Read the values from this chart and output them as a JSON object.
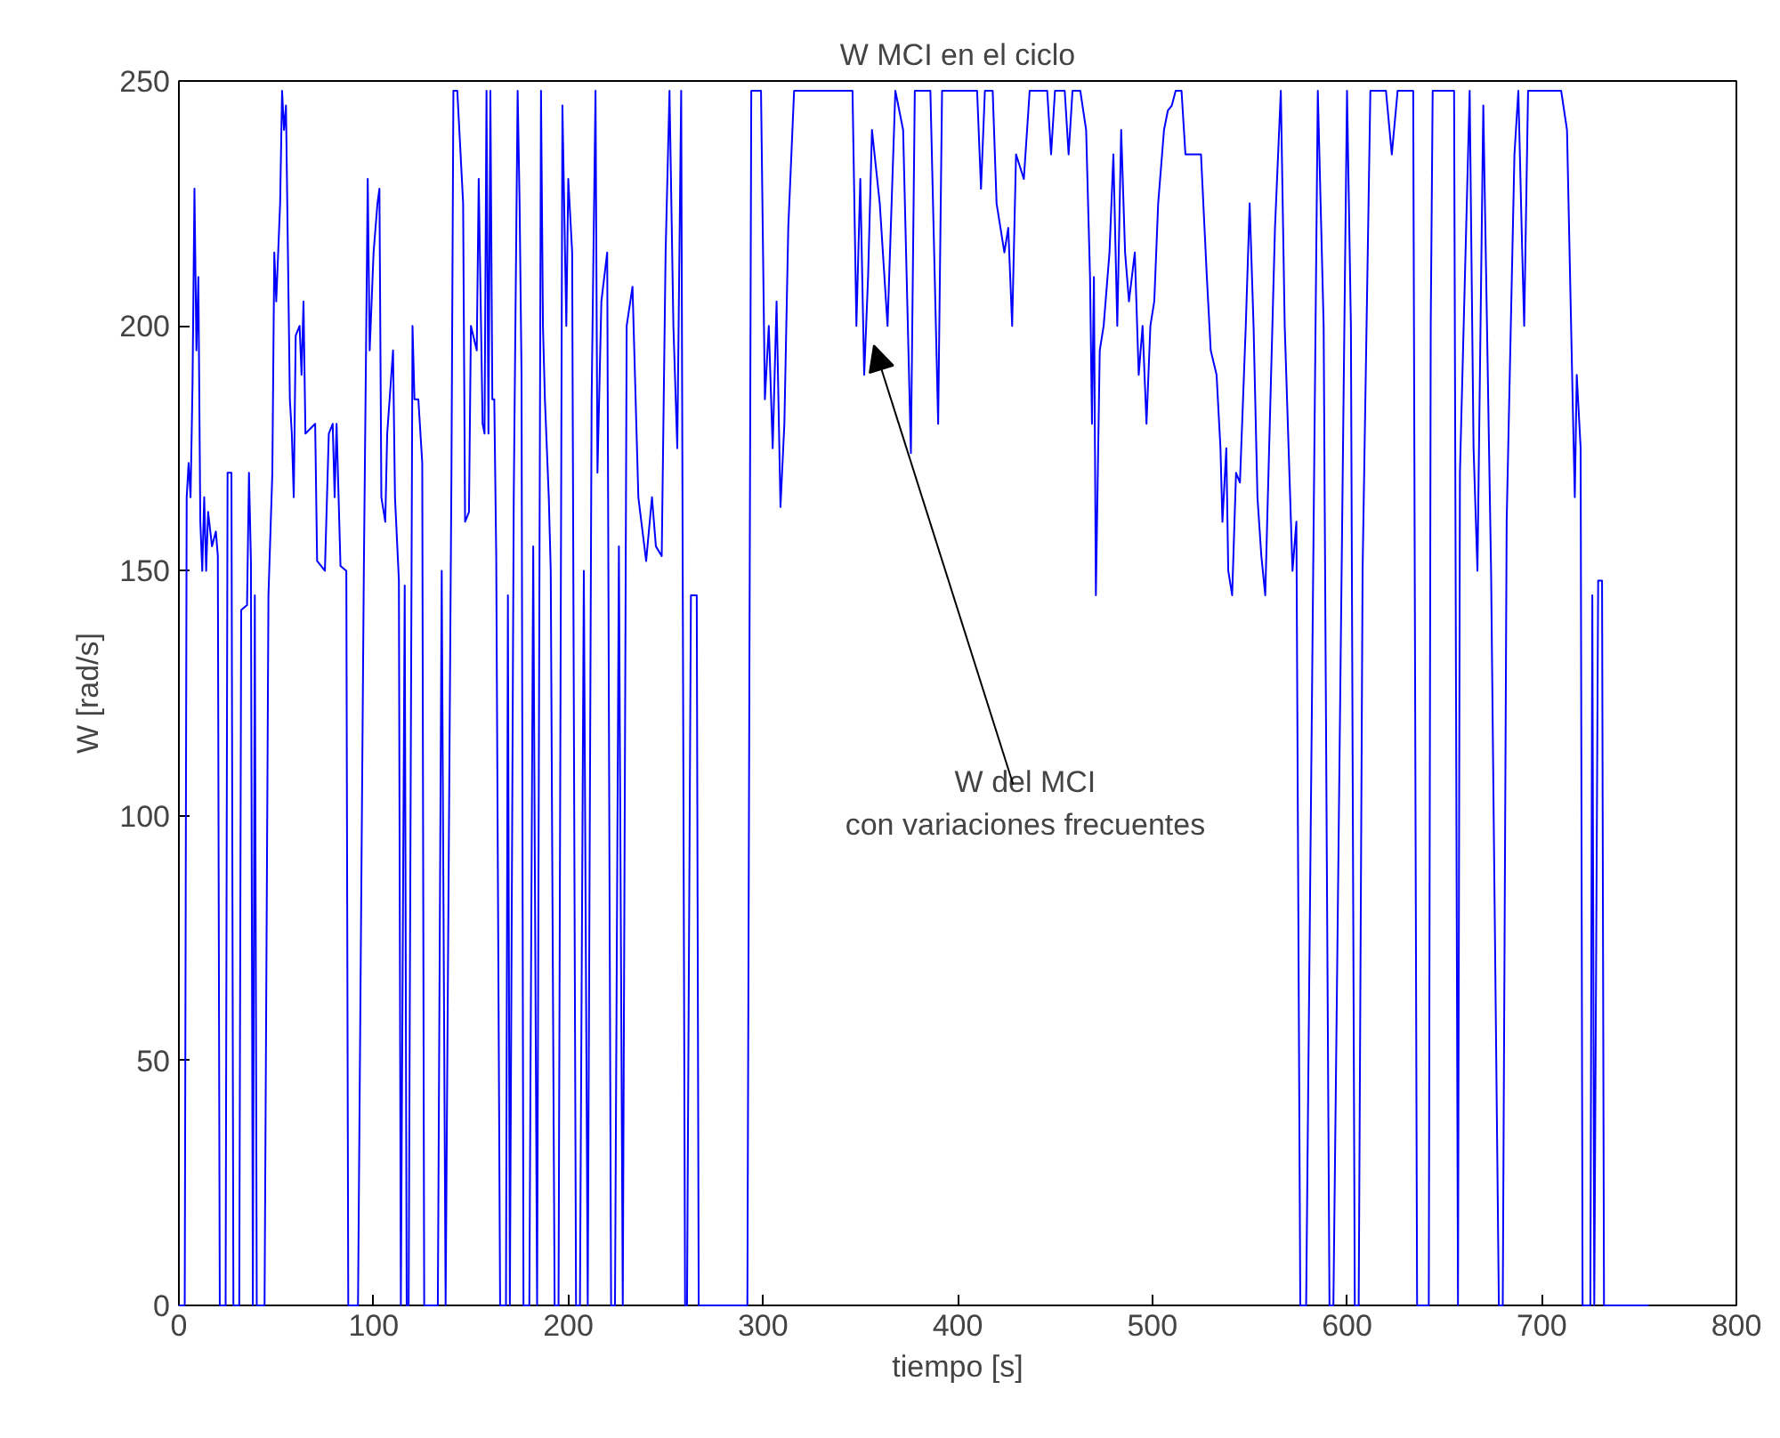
{
  "chart_data": {
    "type": "line",
    "title": "W MCI en el ciclo",
    "xlabel": "tiempo [s]",
    "ylabel": "W [rad/s]",
    "xlim": [
      0,
      800
    ],
    "ylim": [
      0,
      250
    ],
    "xticks": [
      0,
      100,
      200,
      300,
      400,
      500,
      600,
      700,
      800
    ],
    "yticks": [
      0,
      50,
      100,
      150,
      200,
      250
    ],
    "grid": false,
    "marker": "none",
    "line_style": "solid",
    "annotations": [
      {
        "text": "W del MCI\ncon variaciones frecuentes",
        "x": 357,
        "y": 196
      }
    ],
    "series": [
      {
        "color": "#0000ff",
        "x": [
          0,
          3,
          4,
          5,
          6,
          7,
          8,
          9,
          10,
          11,
          12,
          13,
          14,
          15,
          17,
          19,
          20,
          21,
          24,
          25,
          27,
          28,
          31,
          32,
          35,
          36,
          37,
          38,
          39,
          40,
          44,
          46,
          48,
          49,
          50,
          52,
          53,
          54,
          55,
          56,
          57,
          58,
          59,
          60,
          62,
          63,
          64,
          65,
          70,
          71,
          75,
          77,
          79,
          80,
          81,
          83,
          86,
          87,
          92,
          95,
          97,
          98,
          100,
          102,
          103,
          104,
          106,
          107,
          110,
          111,
          113,
          114,
          116,
          117,
          118,
          120,
          121,
          123,
          125,
          126,
          133,
          135,
          137,
          140,
          141,
          143,
          146,
          147,
          149,
          150,
          153,
          154,
          156,
          157,
          158,
          159,
          160,
          161,
          162,
          163,
          165,
          168,
          169,
          170,
          172,
          174,
          175,
          176,
          177,
          180,
          182,
          184,
          186,
          187,
          188,
          190,
          191,
          193,
          195,
          197,
          199,
          200,
          202,
          204,
          206,
          208,
          210,
          212,
          214,
          215,
          217,
          220,
          222,
          224,
          226,
          228,
          230,
          233,
          236,
          240,
          243,
          245,
          248,
          250,
          252,
          254,
          256,
          258,
          260,
          261,
          263,
          266,
          267,
          292,
          294,
          296,
          299,
          301,
          303,
          305,
          307,
          309,
          311,
          313,
          316,
          318,
          330,
          346,
          348,
          350,
          352,
          354,
          356,
          360,
          364,
          368,
          372,
          376,
          378,
          386,
          390,
          392,
          398,
          404,
          410,
          412,
          414,
          418,
          420,
          424,
          426,
          428,
          430,
          434,
          437,
          446,
          448,
          450,
          455,
          457,
          459,
          463,
          466,
          468,
          469,
          470,
          471,
          473,
          475,
          478,
          480,
          482,
          484,
          486,
          488,
          491,
          493,
          495,
          497,
          499,
          501,
          503,
          506,
          508,
          510,
          512,
          515,
          517,
          525,
          528,
          530,
          533,
          535,
          536,
          538,
          539,
          541,
          543,
          545,
          548,
          550,
          552,
          554,
          556,
          558,
          560,
          563,
          566,
          568,
          572,
          574,
          576,
          579,
          585,
          588,
          591,
          593,
          600,
          602,
          604,
          606,
          608,
          612,
          620,
          623,
          626,
          634,
          636,
          642,
          643,
          644,
          652,
          655,
          657,
          658,
          663,
          665,
          667,
          670,
          674,
          678,
          680,
          682,
          686,
          688,
          690,
          691,
          693,
          710,
          713,
          716,
          717,
          718,
          720,
          721,
          725,
          726,
          727,
          729,
          731,
          732,
          755
        ],
        "values": [
          0,
          0,
          165,
          172,
          165,
          188,
          228,
          195,
          210,
          160,
          150,
          165,
          150,
          162,
          155,
          158,
          153,
          0,
          0,
          170,
          170,
          0,
          0,
          142,
          143,
          170,
          152,
          0,
          145,
          0,
          0,
          145,
          170,
          215,
          205,
          225,
          248,
          240,
          245,
          215,
          185,
          178,
          165,
          198,
          200,
          190,
          205,
          178,
          180,
          152,
          150,
          178,
          180,
          165,
          180,
          151,
          150,
          0,
          0,
          150,
          230,
          195,
          215,
          225,
          228,
          165,
          160,
          178,
          195,
          165,
          148,
          0,
          147,
          0,
          0,
          200,
          185,
          185,
          172,
          0,
          0,
          150,
          0,
          170,
          248,
          248,
          225,
          160,
          162,
          200,
          195,
          230,
          180,
          178,
          248,
          178,
          248,
          185,
          185,
          153,
          0,
          0,
          145,
          0,
          165,
          248,
          225,
          190,
          0,
          0,
          155,
          0,
          248,
          200,
          185,
          165,
          150,
          0,
          0,
          245,
          200,
          230,
          215,
          0,
          0,
          150,
          0,
          185,
          248,
          170,
          205,
          215,
          0,
          0,
          155,
          0,
          200,
          208,
          165,
          152,
          165,
          155,
          153,
          215,
          248,
          200,
          175,
          248,
          0,
          0,
          145,
          145,
          0,
          0,
          248,
          248,
          248,
          185,
          200,
          175,
          205,
          163,
          180,
          220,
          248,
          248,
          248,
          248,
          200,
          230,
          190,
          210,
          240,
          225,
          200,
          248,
          240,
          174,
          248,
          248,
          180,
          248,
          248,
          248,
          248,
          228,
          248,
          248,
          225,
          215,
          220,
          200,
          235,
          230,
          248,
          248,
          235,
          248,
          248,
          235,
          248,
          248,
          240,
          210,
          180,
          210,
          145,
          195,
          200,
          215,
          235,
          200,
          240,
          215,
          205,
          215,
          190,
          200,
          180,
          200,
          205,
          225,
          240,
          244,
          245,
          248,
          248,
          235,
          235,
          210,
          195,
          190,
          175,
          160,
          175,
          150,
          145,
          170,
          168,
          200,
          225,
          200,
          165,
          153,
          145,
          175,
          220,
          248,
          200,
          150,
          160,
          0,
          0,
          248,
          200,
          0,
          0,
          248,
          200,
          0,
          0,
          150,
          248,
          248,
          235,
          248,
          248,
          0,
          0,
          200,
          248,
          248,
          248,
          0,
          170,
          248,
          175,
          150,
          245,
          150,
          0,
          0,
          160,
          235,
          248,
          215,
          200,
          248,
          248,
          240,
          183,
          165,
          190,
          175,
          0,
          0,
          145,
          0,
          148,
          148,
          0,
          0
        ]
      }
    ]
  }
}
